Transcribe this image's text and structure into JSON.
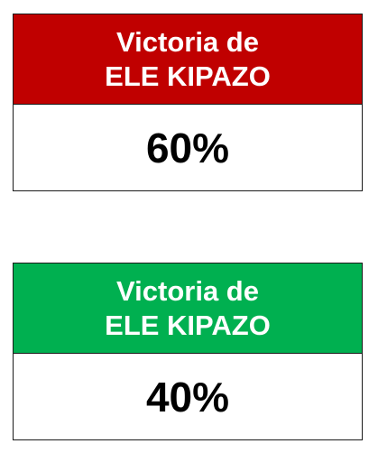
{
  "cards": [
    {
      "line1": "Victoria de",
      "line2": "ELE KIPAZO",
      "value": "60%",
      "header_color": "#C00000"
    },
    {
      "line1": "Victoria de",
      "line2": "ELE KIPAZO",
      "value": "40%",
      "header_color": "#00B050"
    }
  ]
}
